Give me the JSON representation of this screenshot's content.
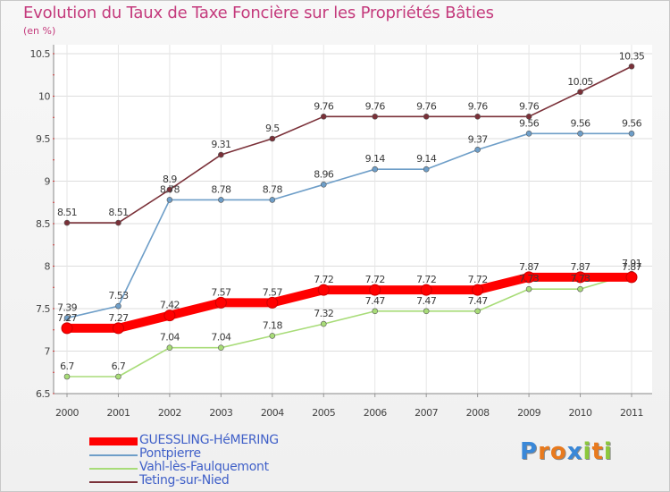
{
  "chart_data": {
    "type": "line",
    "title": "Evolution du Taux de Taxe Foncière sur les Propriétés Bâties",
    "subtitle": "(en %)",
    "x": [
      "2000",
      "2001",
      "2002",
      "2003",
      "2004",
      "2005",
      "2006",
      "2007",
      "2008",
      "2009",
      "2010",
      "2011"
    ],
    "ylim": [
      6.5,
      10.5
    ],
    "yticks": [
      "6.5",
      "7",
      "7.5",
      "8",
      "8.5",
      "9",
      "9.5",
      "10",
      "10.5"
    ],
    "series": [
      {
        "name": "GUESSLING-HéMERING",
        "color": "#ff0000",
        "emphasis": true,
        "values": [
          7.27,
          7.27,
          7.42,
          7.57,
          7.57,
          7.72,
          7.72,
          7.72,
          7.72,
          7.87,
          7.87,
          7.87
        ],
        "labels": [
          "7.27",
          "7.27",
          "7.42",
          "7.57",
          "7.57",
          "7.72",
          "7.72",
          "7.72",
          "7.72",
          "7.87",
          "7.87",
          "7.87"
        ]
      },
      {
        "name": "Pontpierre",
        "color": "#6e9ec8",
        "values": [
          7.39,
          7.53,
          8.78,
          8.78,
          8.78,
          8.96,
          9.14,
          9.14,
          9.37,
          9.56,
          9.56,
          9.56
        ],
        "labels": [
          "7.39",
          "7.53",
          "8.78",
          "8.78",
          "8.78",
          "8.96",
          "9.14",
          "9.14",
          "9.37",
          "9.56",
          "9.56",
          "9.56"
        ]
      },
      {
        "name": "Vahl-lès-Faulquemont",
        "color": "#a8dc78",
        "values": [
          6.7,
          6.7,
          7.04,
          7.04,
          7.18,
          7.32,
          7.47,
          7.47,
          7.47,
          7.73,
          7.73,
          7.91
        ],
        "labels": [
          "6.7",
          "6.7",
          "7.04",
          "7.04",
          "7.18",
          "7.32",
          "7.47",
          "7.47",
          "7.47",
          "7.73",
          "7.73",
          "7.91"
        ]
      },
      {
        "name": "Teting-sur-Nied",
        "color": "#7a3038",
        "values": [
          8.51,
          8.51,
          8.9,
          9.31,
          9.5,
          9.76,
          9.76,
          9.76,
          9.76,
          9.76,
          10.05,
          10.35
        ],
        "labels": [
          "8.51",
          "8.51",
          "8.9",
          "9.31",
          "9.5",
          "9.76",
          "9.76",
          "9.76",
          "9.76",
          "9.76",
          "10.05",
          "10.35"
        ]
      }
    ]
  },
  "brand": {
    "letters": [
      "P",
      "r",
      "o",
      "x",
      "i",
      "t",
      "i"
    ],
    "colors": [
      "#3a88d8",
      "#e87a1e",
      "#e87a1e",
      "#3a88d8",
      "#8cc83c",
      "#e87a1e",
      "#8cc83c"
    ]
  }
}
